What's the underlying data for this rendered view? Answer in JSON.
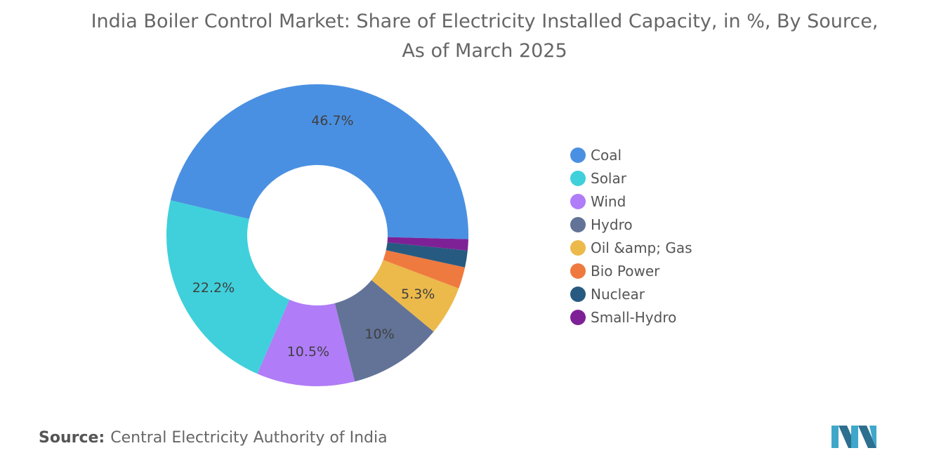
{
  "chart_data": {
    "type": "pie",
    "title": "India Boiler Control Market: Share of Electricity Installed Capacity, in %, By Source, As of March 2025",
    "categories": [
      "Coal",
      "Solar",
      "Wind",
      "Hydro",
      "Oil &amp; Gas",
      "Bio Power",
      "Nuclear",
      "Small-Hydro"
    ],
    "values": [
      46.7,
      22.2,
      10.5,
      10,
      5.3,
      2.3,
      1.8,
      1.2
    ],
    "data_labels": [
      "46.7%",
      "22.2%",
      "10.5%",
      "10%",
      "5.3%",
      "",
      "",
      ""
    ],
    "colors": [
      "#4a90e2",
      "#3fd0db",
      "#b07cf7",
      "#627397",
      "#ecb94b",
      "#ef7a3f",
      "#275a80",
      "#7e2196"
    ],
    "donut": true,
    "legend_position": "right"
  },
  "source": {
    "prefix": "Source:",
    "text": "Central Electricity Authority of India"
  },
  "logo": {
    "icon": "mordor-intelligence-logo-icon"
  }
}
